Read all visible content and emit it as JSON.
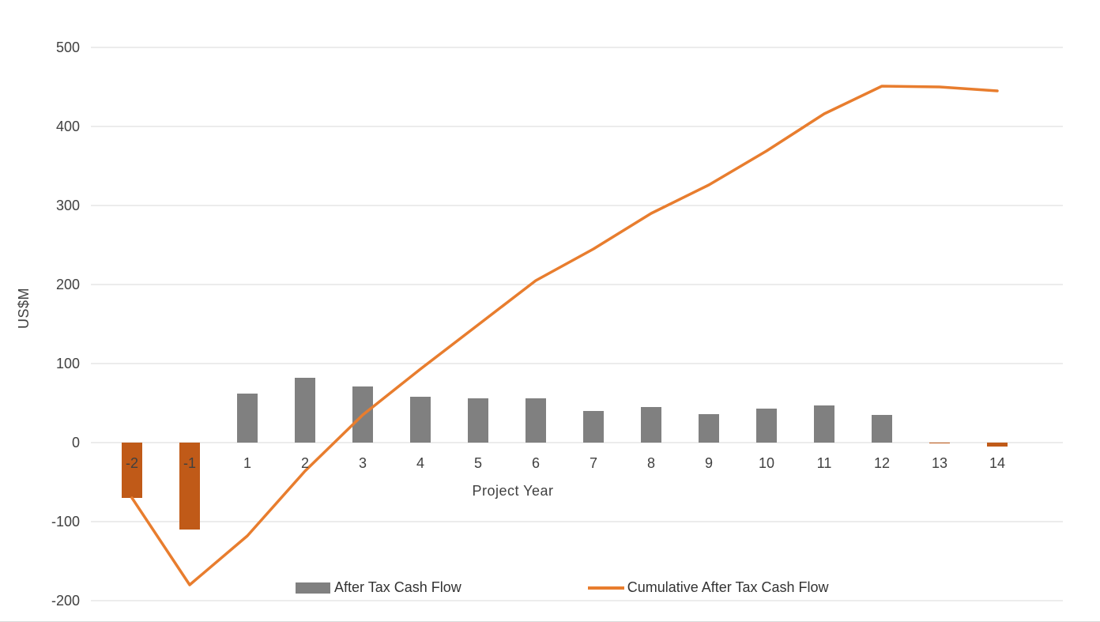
{
  "chart_data": {
    "type": "bar+line",
    "categories": [
      "-2",
      "-1",
      "1",
      "2",
      "3",
      "4",
      "5",
      "6",
      "7",
      "8",
      "9",
      "10",
      "11",
      "12",
      "13",
      "14"
    ],
    "series": [
      {
        "name": "After Tax Cash Flow",
        "type": "bar",
        "values": [
          -70,
          -110,
          62,
          82,
          71,
          58,
          56,
          56,
          40,
          45,
          36,
          43,
          47,
          35,
          -1,
          -5
        ],
        "color_positive": "#808080",
        "color_negative": "#C05A18"
      },
      {
        "name": "Cumulative After Tax Cash Flow",
        "type": "line",
        "values": [
          -70,
          -180,
          -118,
          -36,
          35,
          93,
          149,
          205,
          245,
          290,
          326,
          369,
          416,
          451,
          450,
          445
        ],
        "color": "#E87D2E"
      }
    ],
    "xlabel": "Project Year",
    "ylabel": "US$M",
    "ylim": [
      -200,
      500
    ],
    "yticks": [
      -200,
      -100,
      0,
      100,
      200,
      300,
      400,
      500
    ],
    "grid": true,
    "legend_position": "bottom",
    "gridline_color": "#D9D9D9",
    "tick_label_color": "#404040"
  }
}
